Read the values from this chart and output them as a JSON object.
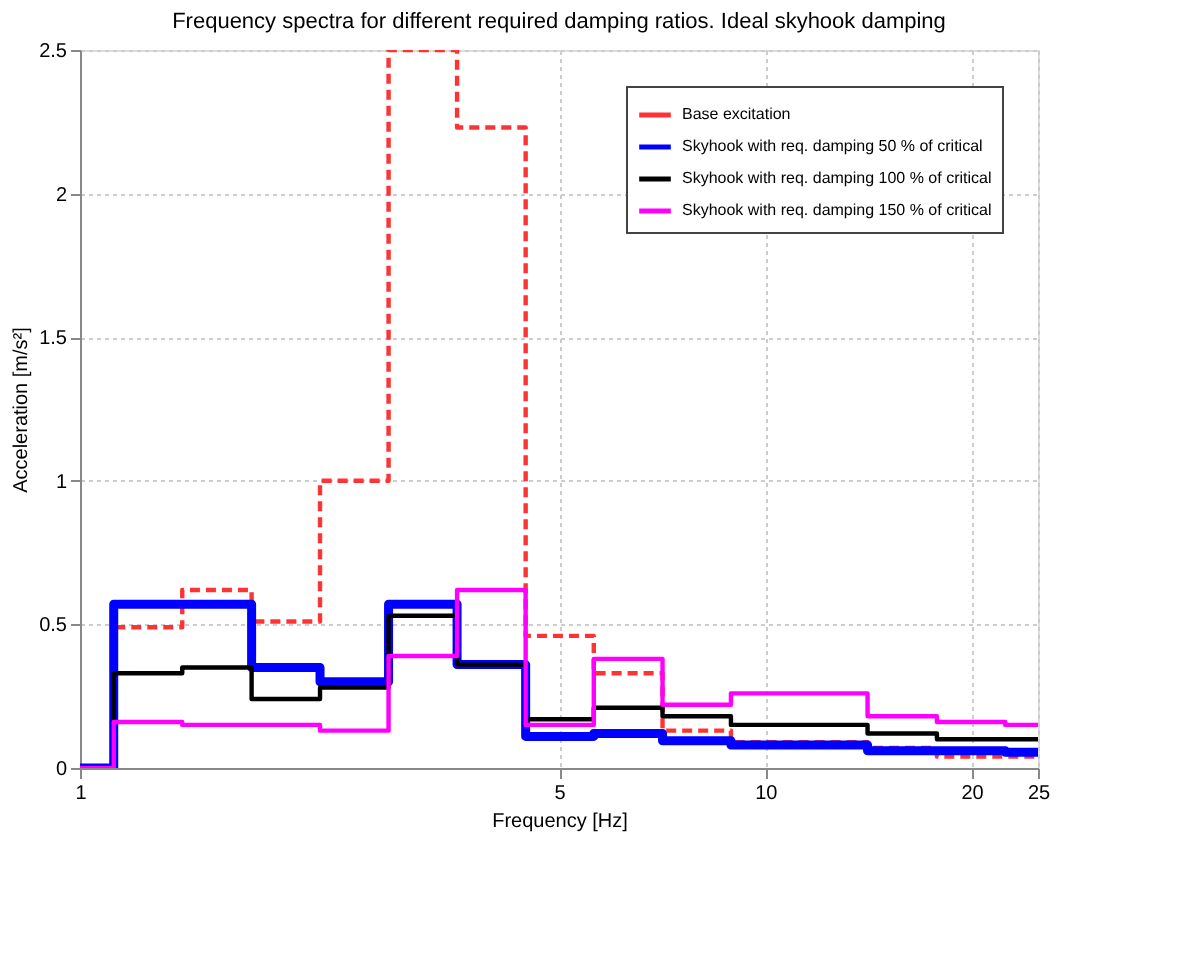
{
  "chart_data": {
    "type": "step",
    "title": "Frequency spectra for different required damping ratios. Ideal skyhook damping",
    "xlabel": "Frequency [Hz]",
    "ylabel": "Acceleration [m/s²]",
    "x": [
      1,
      1.12,
      1.41,
      1.78,
      2.24,
      2.82,
      3.55,
      4.47,
      5.62,
      7.08,
      8.91,
      14.1,
      17.8,
      22.4,
      25
    ],
    "series": [
      {
        "name": "Base excitation",
        "color": "#ff3333",
        "line_style": "dashed",
        "values": [
          0,
          0.49,
          0.62,
          0.51,
          1.0,
          2.5,
          2.23,
          0.46,
          0.33,
          0.13,
          0.09,
          0.07,
          0.04,
          0.04,
          0.04
        ]
      },
      {
        "name": "Skyhook with req. damping 50 % of critical",
        "color": "#0000ff",
        "line_style": "solid",
        "values": [
          0,
          0.57,
          0.57,
          0.35,
          0.3,
          0.57,
          0.36,
          0.11,
          0.12,
          0.095,
          0.08,
          0.06,
          0.06,
          0.055,
          0.055
        ]
      },
      {
        "name": "Skyhook with req. damping 100 % of critical",
        "color": "#000000",
        "line_style": "solid",
        "values": [
          0,
          0.33,
          0.35,
          0.24,
          0.28,
          0.53,
          0.36,
          0.17,
          0.21,
          0.18,
          0.15,
          0.12,
          0.1,
          0.1,
          0.1
        ]
      },
      {
        "name": "Skyhook with req. damping 150 % of critical",
        "color": "#ff00ff",
        "line_style": "solid",
        "values": [
          0,
          0.16,
          0.15,
          0.15,
          0.13,
          0.39,
          0.62,
          0.15,
          0.38,
          0.22,
          0.26,
          0.18,
          0.16,
          0.15,
          0.15
        ]
      }
    ],
    "xlim": [
      1,
      25
    ],
    "xticks": [
      1,
      5,
      10,
      20,
      25
    ],
    "ylim": [
      0,
      2.5
    ],
    "yticks": [
      0,
      0.5,
      1,
      1.5,
      2,
      2.5
    ],
    "log": "x",
    "grid": true,
    "legend": "top right"
  }
}
